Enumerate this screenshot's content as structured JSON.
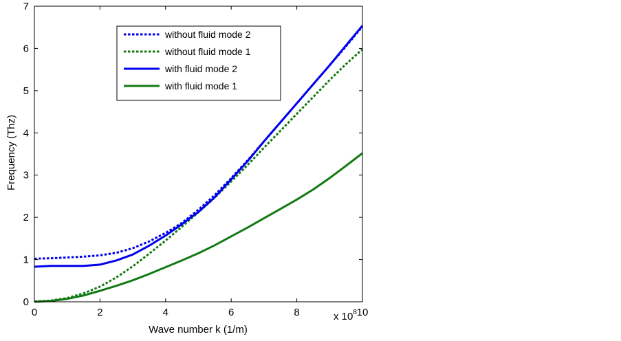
{
  "chart_data": {
    "type": "line",
    "xlabel": "Wave number k  (1/m)",
    "ylabel": "Frequency  (Thz)",
    "x_exponent_label": "x 10",
    "x_exponent_power": "8",
    "xlim": [
      0,
      10
    ],
    "ylim": [
      0,
      7
    ],
    "xticks": [
      0,
      2,
      4,
      6,
      8,
      10
    ],
    "yticks": [
      0,
      1,
      2,
      3,
      4,
      5,
      6,
      7
    ],
    "grid": false,
    "legend_position": "top-center",
    "series": [
      {
        "name": "without fluid mode 2",
        "color": "#0000ee",
        "style": "dotted",
        "x": [
          0,
          0.5,
          1,
          1.5,
          2,
          2.5,
          3,
          3.5,
          4,
          4.5,
          5,
          5.5,
          6,
          6.5,
          7,
          7.5,
          8,
          8.5,
          9,
          9.5,
          10
        ],
        "y": [
          1.02,
          1.03,
          1.05,
          1.07,
          1.1,
          1.16,
          1.27,
          1.43,
          1.63,
          1.87,
          2.18,
          2.53,
          2.93,
          3.35,
          3.8,
          4.25,
          4.7,
          5.15,
          5.6,
          6.05,
          6.52
        ]
      },
      {
        "name": "without fluid mode 1",
        "color": "#127a12",
        "style": "dotted",
        "x": [
          0,
          0.5,
          1,
          1.5,
          2,
          2.5,
          3,
          3.5,
          4,
          4.5,
          5,
          5.5,
          6,
          6.5,
          7,
          7.5,
          8,
          8.5,
          9,
          9.5,
          10
        ],
        "y": [
          0.01,
          0.03,
          0.09,
          0.2,
          0.36,
          0.58,
          0.84,
          1.14,
          1.45,
          1.78,
          2.12,
          2.47,
          2.85,
          3.24,
          3.65,
          4.05,
          4.45,
          4.85,
          5.25,
          5.63,
          5.98
        ]
      },
      {
        "name": "with fluid mode 2",
        "color": "#0000ee",
        "style": "solid",
        "x": [
          0,
          0.5,
          1,
          1.5,
          2,
          2.5,
          3,
          3.5,
          4,
          4.5,
          5,
          5.5,
          6,
          6.5,
          7,
          7.5,
          8,
          8.5,
          9,
          9.5,
          10
        ],
        "y": [
          0.83,
          0.85,
          0.85,
          0.85,
          0.88,
          0.98,
          1.12,
          1.33,
          1.57,
          1.84,
          2.13,
          2.48,
          2.9,
          3.33,
          3.8,
          4.25,
          4.7,
          5.15,
          5.6,
          6.07,
          6.54
        ]
      },
      {
        "name": "with fluid mode 1",
        "color": "#127a12",
        "style": "solid",
        "x": [
          0,
          0.5,
          1,
          1.5,
          2,
          2.5,
          3,
          3.5,
          4,
          4.5,
          5,
          5.5,
          6,
          6.5,
          7,
          7.5,
          8,
          8.5,
          9,
          9.5,
          10
        ],
        "y": [
          0.0,
          0.02,
          0.07,
          0.15,
          0.26,
          0.38,
          0.51,
          0.66,
          0.82,
          0.98,
          1.15,
          1.34,
          1.55,
          1.76,
          1.98,
          2.2,
          2.42,
          2.66,
          2.93,
          3.22,
          3.52
        ]
      }
    ]
  }
}
